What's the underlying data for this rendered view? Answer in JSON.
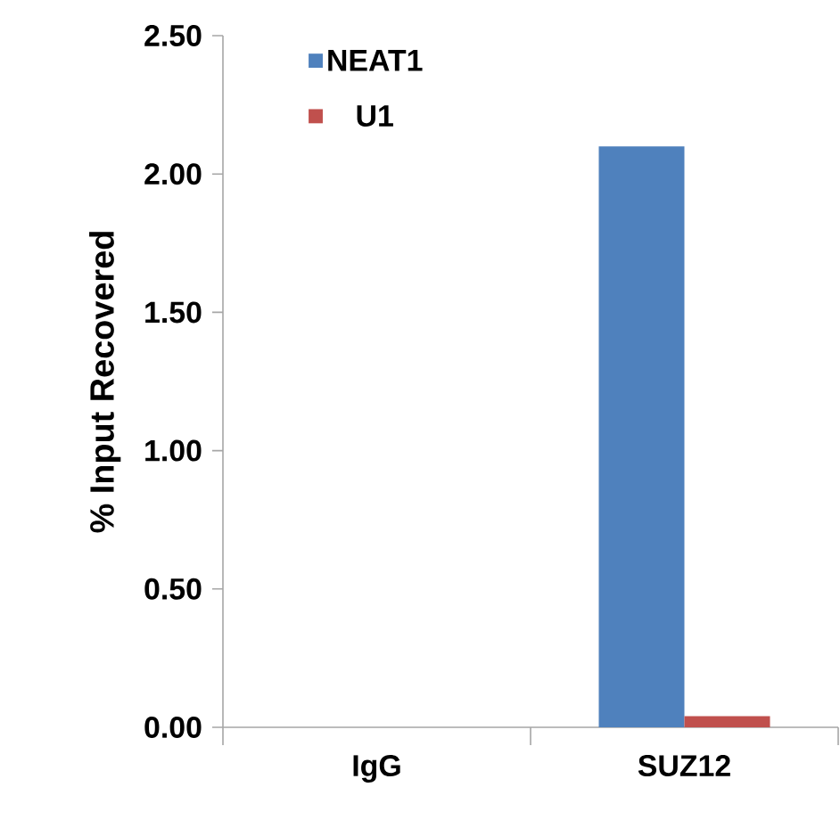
{
  "chart_data": {
    "type": "bar",
    "ylabel": "% Input Recovered",
    "categories": [
      "IgG",
      "SUZ12"
    ],
    "series": [
      {
        "name": "NEAT1",
        "color": "#4f81bd",
        "values": [
          0,
          2.1
        ]
      },
      {
        "name": "U1",
        "color": "#c0504d",
        "values": [
          0,
          0.04
        ]
      }
    ],
    "ylim": [
      0,
      2.5
    ],
    "yticks": [
      {
        "value": 0,
        "label": "0.00"
      },
      {
        "value": 0.5,
        "label": "0.50"
      },
      {
        "value": 1,
        "label": "1.00"
      },
      {
        "value": 1.5,
        "label": "1.50"
      },
      {
        "value": 2,
        "label": "2.00"
      },
      {
        "value": 2.5,
        "label": "2.50"
      }
    ],
    "legend": "top left",
    "grid": false
  }
}
